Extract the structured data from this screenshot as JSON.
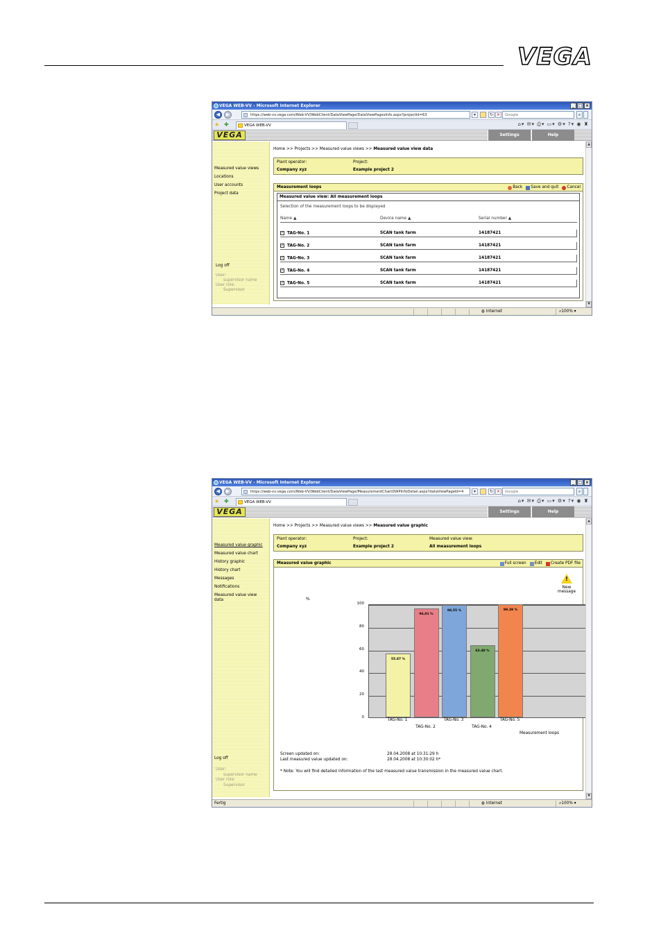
{
  "page": {
    "logo_text": "VEGA"
  },
  "screenshot1": {
    "title": "VEGA WEB-VV - Microsoft Internet Explorer",
    "url": "https://web-vv.vega.com/Web-VV/WebClient/DataViewPage/DataViewPagesInfo.aspx?projectId=63",
    "search_placeholder": "Google",
    "tab_label": "VEGA WEB-VV",
    "nav": {
      "settings": "Settings",
      "help": "Help"
    },
    "sidebar": {
      "items": [
        "Measured value views",
        "Locations",
        "User accounts",
        "Project data"
      ],
      "logoff": "Log off",
      "user_label": "User:",
      "user_name": "supervisor name",
      "role_label": "User role:",
      "role_name": "Supervisor"
    },
    "breadcrumb": {
      "prefix": "Home >> Projects >> Measured value views >> ",
      "current": "Measured value view data"
    },
    "info": {
      "op_label": "Plant operator:",
      "op_value": "Company xyz",
      "proj_label": "Project:",
      "proj_value": "Example project 2"
    },
    "panel": {
      "title": "Measurement loops",
      "back": "Back",
      "save": "Save and quit",
      "cancel": "Cancel"
    },
    "subpanel": {
      "title": "Measured value view: All measurement loops",
      "hint": "Selection of the measurement loops to be displayed"
    },
    "columns": [
      "Name",
      "Device name",
      "Serial number"
    ],
    "sort_glyph": "▲",
    "check_glyph": "✓",
    "rows": [
      {
        "name": "TAG-No. 1",
        "device": "SCAN tank farm",
        "serial": "14187421"
      },
      {
        "name": "TAG-No. 2",
        "device": "SCAN tank farm",
        "serial": "14187421"
      },
      {
        "name": "TAG-No. 3",
        "device": "SCAN tank farm",
        "serial": "14187421"
      },
      {
        "name": "TAG-No. 4",
        "device": "SCAN tank farm",
        "serial": "14187421"
      },
      {
        "name": "TAG-No. 5",
        "device": "SCAN tank farm",
        "serial": "14187421"
      }
    ],
    "status": {
      "zone": "Internet",
      "zoom": "100%"
    }
  },
  "screenshot2": {
    "title": "VEGA WEB-VV - Microsoft Internet Explorer",
    "url": "https://web-vv.vega.com/Web-VV/WebClient/DataViewPage/MeasurementChartDWPInfoDetail.aspx?dataViewPageId=4",
    "search_placeholder": "Google",
    "tab_label": "VEGA WEB-VV",
    "nav": {
      "settings": "Settings",
      "help": "Help"
    },
    "sidebar": {
      "items": [
        "Measured value graphic",
        "Measured value chart",
        "History graphic",
        "History chart",
        "Messages",
        "Notifications",
        "Measured value view",
        "data"
      ],
      "logoff": "Log off",
      "user_label": "User:",
      "user_name": "supervisor name",
      "role_label": "User role:",
      "role_name": "Supervisor"
    },
    "breadcrumb": {
      "prefix": "Home >> Projects >> Measured value views >> ",
      "current": "Measured value graphic"
    },
    "info": {
      "op_label": "Plant operator:",
      "op_value": "Company xyz",
      "proj_label": "Project:",
      "proj_value": "Example project 2",
      "view_label": "Measured value view:",
      "view_value": "All measurement loops"
    },
    "panel": {
      "title": "Measured value graphic",
      "fullscreen": "Full screen",
      "edit": "Edit",
      "pdf": "Create PDF file"
    },
    "new_message": {
      "line1": "New",
      "line2": "message"
    },
    "footer": {
      "screen_label": "Screen updated on:",
      "screen_value": "28.04.2008 at 10:31:29 h",
      "last_label": "Last measured value updated on:",
      "last_value": "28.04.2008 at 10:30:02 h*",
      "note": "* Note: You will find detailed information of the last measured value transmission in the measured value chart."
    },
    "status": {
      "left": "Fertig",
      "zone": "Internet",
      "zoom": "100%"
    }
  },
  "chart_data": {
    "type": "bar",
    "categories": [
      "TAG-No. 1",
      "TAG-No. 2",
      "TAG-No. 3",
      "TAG-No. 4",
      "TAG-No. 5"
    ],
    "values": [
      55.87,
      96.01,
      98.55,
      63.4,
      99.39
    ],
    "value_labels": [
      "55.87 %",
      "96,01 %",
      "98,55 %",
      "63.40 %",
      "99.39 %"
    ],
    "colors": [
      "#f4f2a6",
      "#e87f88",
      "#7fa6da",
      "#7fa96f",
      "#f2844d"
    ],
    "ylabel": "%",
    "xlabel": "Measurement loops",
    "yticks": [
      0,
      20,
      40,
      60,
      80,
      100
    ],
    "ylim": [
      0,
      100
    ],
    "grid": true
  }
}
